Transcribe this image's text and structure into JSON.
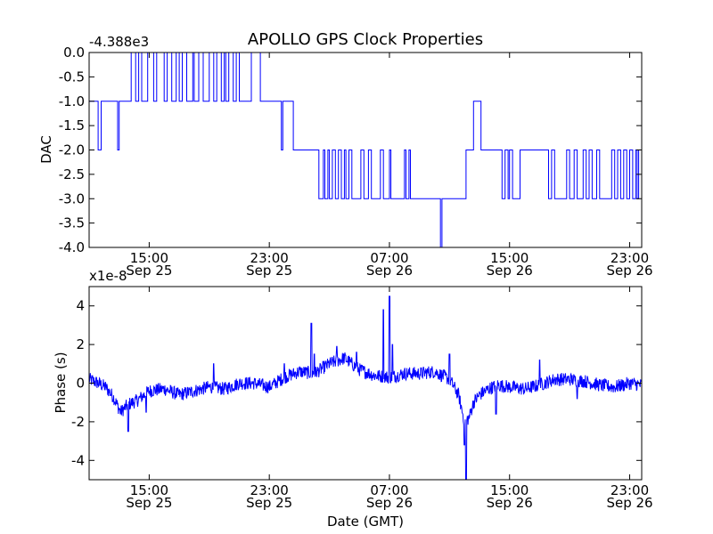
{
  "colors": {
    "line": "#0000ff",
    "frame": "#000000",
    "background": "#ffffff"
  },
  "chart_data": {
    "title": "APOLLO GPS Clock Properties",
    "xlabel": "Date (GMT)",
    "x_ticks": [
      {
        "time": "15:00",
        "date": "Sep 25",
        "hours": 15
      },
      {
        "time": "23:00",
        "date": "Sep 25",
        "hours": 23
      },
      {
        "time": "07:00",
        "date": "Sep 26",
        "hours": 31
      },
      {
        "time": "15:00",
        "date": "Sep 26",
        "hours": 39
      },
      {
        "time": "23:00",
        "date": "Sep 26",
        "hours": 47
      }
    ],
    "x_range_hours": [
      11.0,
      47.8
    ],
    "panels": [
      {
        "type": "line",
        "ylabel": "DAC",
        "offset_label": "-4.388e3",
        "ylim": [
          -4.0,
          0.0
        ],
        "yticks": [
          "-4.0",
          "-3.5",
          "-3.0",
          "-2.5",
          "-2.0",
          "-1.5",
          "-1.0",
          "-0.5",
          "0.0"
        ],
        "ytick_values": [
          -4.0,
          -3.5,
          -3.0,
          -2.5,
          -2.0,
          -1.5,
          -1.0,
          -0.5,
          0.0
        ],
        "series": [
          {
            "name": "DAC",
            "steps": [
              [
                11.0,
                -1
              ],
              [
                11.5,
                -1
              ],
              [
                11.6,
                -2
              ],
              [
                11.8,
                -1
              ],
              [
                12.6,
                -1
              ],
              [
                12.8,
                -1
              ],
              [
                12.9,
                -2
              ],
              [
                13.0,
                -1
              ],
              [
                13.6,
                -1
              ],
              [
                13.7,
                -1
              ],
              [
                13.8,
                0
              ],
              [
                14.0,
                0
              ],
              [
                14.1,
                -1
              ],
              [
                14.3,
                0
              ],
              [
                14.5,
                -1
              ],
              [
                14.9,
                0
              ],
              [
                15.3,
                -1
              ],
              [
                15.5,
                0
              ],
              [
                16.0,
                -1
              ],
              [
                16.2,
                0
              ],
              [
                16.5,
                -1
              ],
              [
                16.8,
                0
              ],
              [
                17.0,
                -1
              ],
              [
                17.2,
                0
              ],
              [
                17.5,
                -1
              ],
              [
                17.9,
                0
              ],
              [
                18.0,
                -1
              ],
              [
                18.3,
                0
              ],
              [
                18.6,
                -1
              ],
              [
                19.0,
                0
              ],
              [
                19.3,
                -1
              ],
              [
                19.5,
                0
              ],
              [
                19.8,
                -1
              ],
              [
                20.0,
                0
              ],
              [
                20.1,
                -1
              ],
              [
                20.3,
                0
              ],
              [
                20.6,
                -1
              ],
              [
                20.8,
                0
              ],
              [
                21.0,
                -1
              ],
              [
                21.7,
                -1
              ],
              [
                21.8,
                0
              ],
              [
                22.3,
                0
              ],
              [
                22.4,
                -1
              ],
              [
                23.2,
                -1
              ],
              [
                23.5,
                -1
              ],
              [
                23.8,
                -2
              ],
              [
                23.9,
                -1
              ],
              [
                24.5,
                -1
              ],
              [
                24.6,
                -2
              ],
              [
                26.2,
                -2
              ],
              [
                26.3,
                -3
              ],
              [
                26.6,
                -2
              ],
              [
                26.7,
                -3
              ],
              [
                26.9,
                -2
              ],
              [
                27.0,
                -3
              ],
              [
                27.2,
                -2
              ],
              [
                27.4,
                -3
              ],
              [
                27.6,
                -2
              ],
              [
                27.8,
                -3
              ],
              [
                28.0,
                -2
              ],
              [
                28.1,
                -3
              ],
              [
                28.3,
                -2
              ],
              [
                28.5,
                -3
              ],
              [
                28.9,
                -3
              ],
              [
                29.1,
                -2
              ],
              [
                29.3,
                -3
              ],
              [
                29.6,
                -2
              ],
              [
                29.8,
                -3
              ],
              [
                30.2,
                -3
              ],
              [
                30.4,
                -2
              ],
              [
                30.6,
                -3
              ],
              [
                31.0,
                -2
              ],
              [
                31.1,
                -3
              ],
              [
                31.8,
                -3
              ],
              [
                32.0,
                -2
              ],
              [
                32.1,
                -3
              ],
              [
                32.3,
                -2
              ],
              [
                32.4,
                -3
              ],
              [
                34.3,
                -3
              ],
              [
                34.4,
                -4
              ],
              [
                34.5,
                -3
              ],
              [
                36.0,
                -3
              ],
              [
                36.1,
                -2
              ],
              [
                36.5,
                -2
              ],
              [
                36.6,
                -1
              ],
              [
                36.9,
                -1
              ],
              [
                37.1,
                -2
              ],
              [
                38.4,
                -2
              ],
              [
                38.5,
                -3
              ],
              [
                38.7,
                -2
              ],
              [
                38.9,
                -3
              ],
              [
                39.0,
                -2
              ],
              [
                39.2,
                -3
              ],
              [
                39.6,
                -3
              ],
              [
                39.7,
                -2
              ],
              [
                41.5,
                -2
              ],
              [
                41.6,
                -3
              ],
              [
                41.8,
                -2
              ],
              [
                42.0,
                -3
              ],
              [
                42.5,
                -3
              ],
              [
                42.8,
                -2
              ],
              [
                43.0,
                -3
              ],
              [
                43.3,
                -2
              ],
              [
                43.5,
                -3
              ],
              [
                43.9,
                -2
              ],
              [
                44.1,
                -3
              ],
              [
                44.3,
                -2
              ],
              [
                44.5,
                -3
              ],
              [
                44.8,
                -2
              ],
              [
                45.0,
                -3
              ],
              [
                45.5,
                -3
              ],
              [
                45.8,
                -2
              ],
              [
                46.0,
                -3
              ],
              [
                46.2,
                -2
              ],
              [
                46.4,
                -3
              ],
              [
                46.6,
                -2
              ],
              [
                46.8,
                -3
              ],
              [
                47.0,
                -2
              ],
              [
                47.2,
                -3
              ],
              [
                47.4,
                -2
              ],
              [
                47.5,
                -3
              ],
              [
                47.6,
                -2
              ],
              [
                47.8,
                -2
              ]
            ]
          }
        ]
      },
      {
        "type": "line",
        "ylabel": "Phase (s)",
        "offset_label": "x1e-8",
        "ylim": [
          -5.0,
          5.0
        ],
        "yticks": [
          "-4",
          "-2",
          "0",
          "2",
          "4"
        ],
        "ytick_values": [
          -4,
          -2,
          0,
          2,
          4
        ],
        "series": [
          {
            "name": "Phase",
            "trend": [
              [
                11.0,
                0.2
              ],
              [
                11.6,
                0.0
              ],
              [
                12.1,
                -0.2
              ],
              [
                12.6,
                -0.7
              ],
              [
                13.1,
                -1.5
              ],
              [
                13.6,
                -1.1
              ],
              [
                14.2,
                -0.9
              ],
              [
                15.0,
                -0.4
              ],
              [
                16.0,
                -0.3
              ],
              [
                17.0,
                -0.6
              ],
              [
                18.0,
                -0.4
              ],
              [
                19.0,
                -0.2
              ],
              [
                20.0,
                -0.3
              ],
              [
                21.0,
                0.0
              ],
              [
                22.0,
                0.0
              ],
              [
                23.0,
                -0.2
              ],
              [
                24.0,
                0.3
              ],
              [
                25.0,
                0.6
              ],
              [
                26.0,
                0.5
              ],
              [
                27.0,
                1.0
              ],
              [
                28.0,
                1.3
              ],
              [
                29.0,
                0.7
              ],
              [
                30.0,
                0.4
              ],
              [
                31.0,
                0.3
              ],
              [
                32.0,
                0.5
              ],
              [
                33.0,
                0.5
              ],
              [
                34.0,
                0.6
              ],
              [
                35.0,
                0.2
              ],
              [
                35.6,
                -0.6
              ],
              [
                36.0,
                -2.0
              ],
              [
                36.3,
                -1.8
              ],
              [
                36.6,
                -1.0
              ],
              [
                37.0,
                -0.6
              ],
              [
                37.6,
                -0.3
              ],
              [
                38.2,
                -0.1
              ],
              [
                39.0,
                -0.2
              ],
              [
                40.0,
                -0.3
              ],
              [
                41.0,
                -0.1
              ],
              [
                42.0,
                0.2
              ],
              [
                43.0,
                0.2
              ],
              [
                44.0,
                0.1
              ],
              [
                45.0,
                -0.1
              ],
              [
                46.0,
                -0.2
              ],
              [
                47.0,
                0.0
              ],
              [
                47.8,
                -0.1
              ]
            ],
            "spikes": [
              [
                13.6,
                -2.5
              ],
              [
                14.8,
                -1.5
              ],
              [
                19.3,
                1.0
              ],
              [
                24.0,
                1.0
              ],
              [
                25.8,
                3.1
              ],
              [
                26.0,
                1.5
              ],
              [
                27.5,
                1.9
              ],
              [
                28.8,
                1.6
              ],
              [
                30.6,
                3.8
              ],
              [
                31.0,
                4.5
              ],
              [
                31.2,
                2.0
              ],
              [
                35.0,
                1.5
              ],
              [
                36.0,
                -3.2
              ],
              [
                36.1,
                -5.0
              ],
              [
                38.1,
                -1.6
              ],
              [
                41.0,
                1.2
              ],
              [
                43.5,
                -0.8
              ]
            ],
            "noise_amplitude": 0.35
          }
        ]
      }
    ]
  }
}
